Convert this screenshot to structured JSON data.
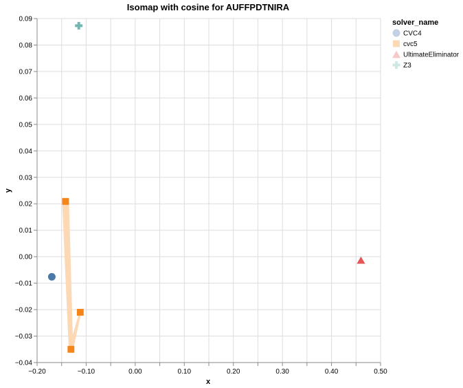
{
  "chart_data": {
    "type": "scatter",
    "title": "Isomap with cosine for AUFFPDTNIRA",
    "xlabel": "x",
    "ylabel": "y",
    "xlim": [
      -0.2,
      0.5
    ],
    "ylim": [
      -0.04,
      0.09
    ],
    "x_ticks": [
      "−0.20",
      "−0.10",
      "0.00",
      "0.10",
      "0.20",
      "0.30",
      "0.40",
      "0.50"
    ],
    "x_tick_values": [
      -0.2,
      -0.1,
      0.0,
      0.1,
      0.2,
      0.3,
      0.4,
      0.5
    ],
    "x_minor_grid_values": [
      -0.15,
      -0.05,
      0.05,
      0.15,
      0.25,
      0.35,
      0.45
    ],
    "y_ticks": [
      "−0.04",
      "−0.03",
      "−0.02",
      "−0.01",
      "0.00",
      "0.01",
      "0.02",
      "0.03",
      "0.04",
      "0.05",
      "0.06",
      "0.07",
      "0.08",
      "0.09"
    ],
    "y_tick_values": [
      -0.04,
      -0.03,
      -0.02,
      -0.01,
      0.0,
      0.01,
      0.02,
      0.03,
      0.04,
      0.05,
      0.06,
      0.07,
      0.08,
      0.09
    ],
    "grid": true,
    "legend": {
      "title": "solver_name",
      "position": "right"
    },
    "series": [
      {
        "name": "CVC4",
        "shape": "circle",
        "color": "#4c78a8",
        "legend_color": "#c3d1e3",
        "points": [
          {
            "x": -0.17,
            "y": -0.0076
          }
        ]
      },
      {
        "name": "cvc5",
        "shape": "square",
        "color": "#f58518",
        "legend_color": "#fdd8b5",
        "trail_color": "#fdd8b5",
        "points": [
          {
            "x": -0.142,
            "y": 0.0209
          },
          {
            "x": -0.131,
            "y": -0.035
          },
          {
            "x": -0.112,
            "y": -0.021
          }
        ]
      },
      {
        "name": "UltimateEliminator",
        "shape": "triangle",
        "color": "#e45756",
        "legend_color": "#f6c8c8",
        "points": [
          {
            "x": 0.46,
            "y": -0.0013
          }
        ]
      },
      {
        "name": "Z3",
        "shape": "cross",
        "color": "#72b7b2",
        "legend_color": "#cfe8e6",
        "points": [
          {
            "x": -0.115,
            "y": 0.0873
          }
        ]
      }
    ]
  }
}
